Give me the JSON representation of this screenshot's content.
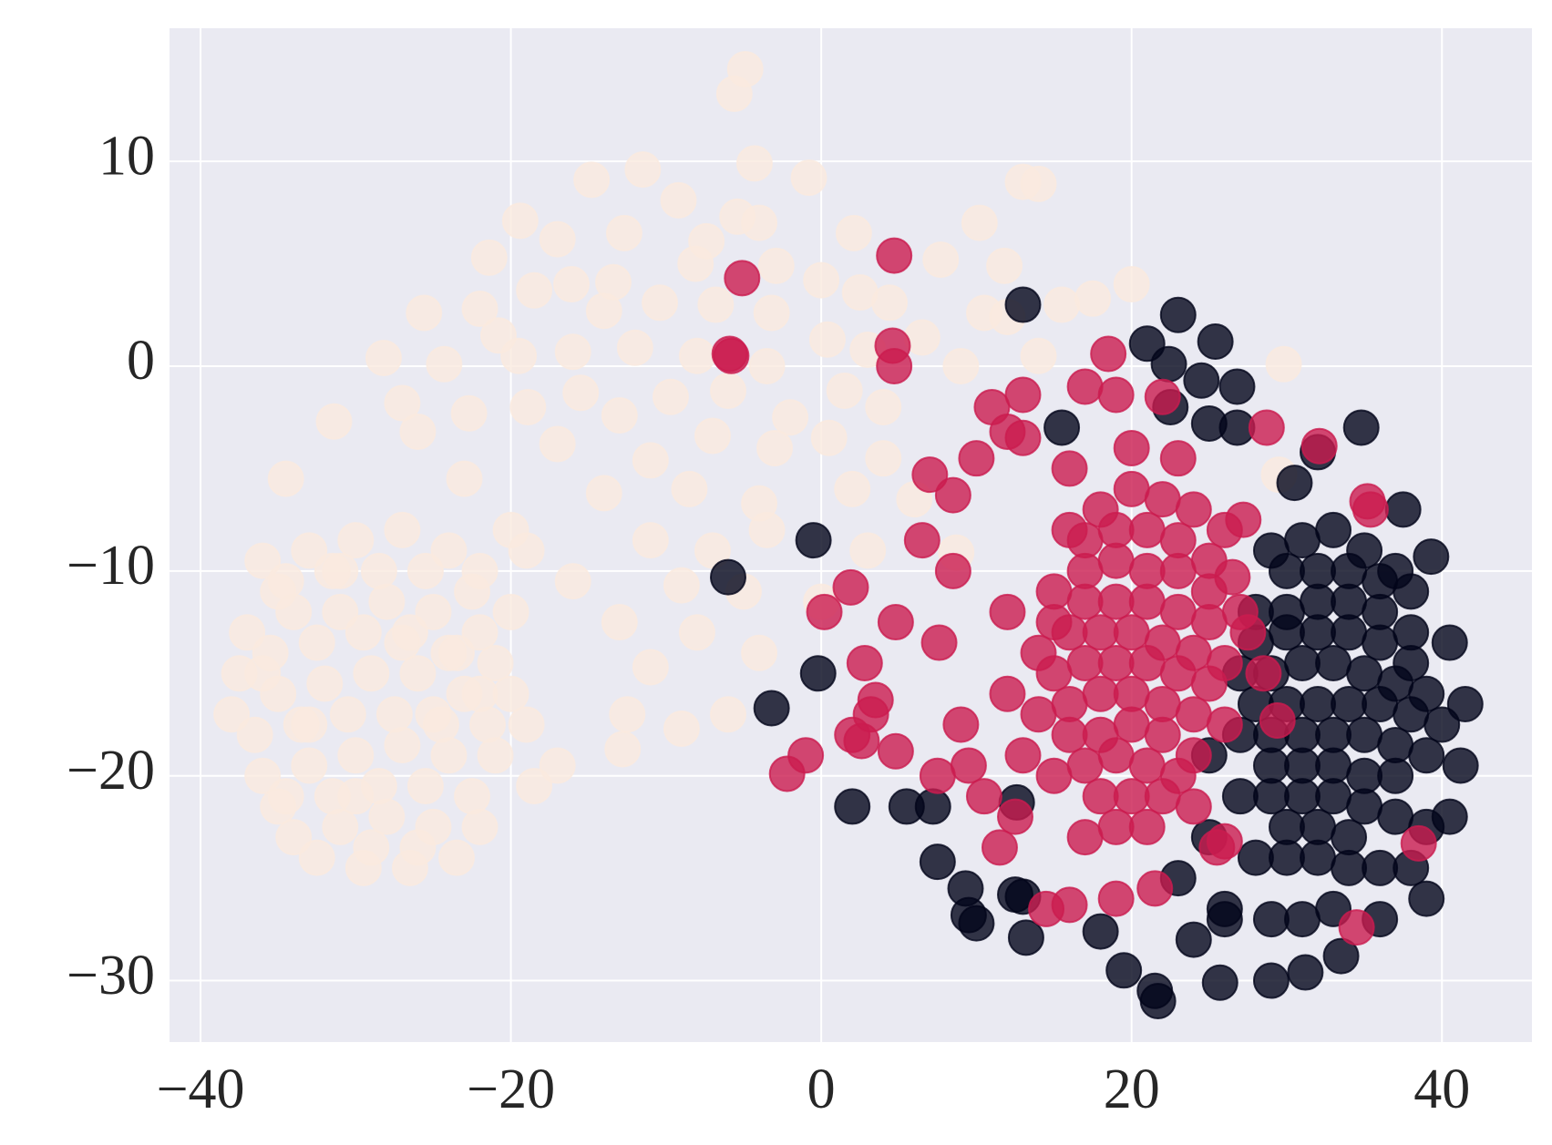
{
  "chart_data": {
    "type": "scatter",
    "xlim": [
      -42,
      45.8
    ],
    "ylim": [
      -33,
      16.5
    ],
    "xticks": [
      {
        "value": -40,
        "label": "−40"
      },
      {
        "value": -20,
        "label": "−20"
      },
      0,
      20,
      40
    ],
    "yticks": [
      {
        "value": -30,
        "label": "−30"
      },
      {
        "value": -20,
        "label": "−20"
      },
      {
        "value": -10,
        "label": "−10"
      },
      0,
      10
    ],
    "grid": true,
    "alpha": 0.8,
    "background": "#eaeaf2",
    "series": [
      {
        "color": "#faeade",
        "x": [
          -5.6,
          -4.9,
          -11.5,
          -14.8,
          -4.3,
          -0.8,
          -9.2,
          -19.4,
          -17,
          -12.7,
          -5.4,
          -4,
          -21.4,
          -7.4,
          -8.1,
          2.1,
          7.7,
          10.2,
          13,
          14,
          11.8,
          -2.9,
          0,
          -13.4,
          -16.1,
          -18.5,
          -25.6,
          -20.8,
          -22,
          -14,
          -10.4,
          -6.8,
          -3.2,
          2.5,
          4.4,
          10.5,
          12,
          15.5,
          17.5,
          20,
          -28.2,
          -24.3,
          -19.5,
          -16,
          -12,
          -8,
          -3.5,
          0.4,
          3,
          6.5,
          9,
          14,
          29.8,
          -27,
          -22.7,
          -18.9,
          -15.5,
          -13,
          -9.7,
          -6,
          -2,
          1.5,
          4,
          -31.4,
          -26,
          -17,
          -11,
          -7,
          -3,
          0.5,
          4,
          -34.5,
          -23,
          -14,
          -8.5,
          -4,
          2,
          6,
          -20,
          -11,
          -7,
          -3.5,
          3,
          -16,
          -9,
          -5,
          0,
          -13,
          -8,
          -4,
          -11,
          -22,
          -19,
          -12.5,
          -6,
          -9,
          -12.8,
          -17,
          -18.5,
          8.7,
          29.5,
          -36,
          -33,
          -30,
          -27,
          -24,
          -22,
          -37,
          -34,
          -31,
          -28,
          -25,
          -22,
          -38,
          -35,
          -32,
          -29,
          -26,
          -23,
          -36,
          -33,
          -30,
          -27,
          -24,
          -21,
          -34,
          -31,
          -28,
          -25,
          -22,
          -29,
          -26,
          -33,
          -27,
          -31,
          -24,
          -37.5,
          -35,
          -20,
          -20,
          -19,
          -34.5,
          -31.5,
          -28.5,
          -25.5,
          -22.5,
          -35.5,
          -32.5,
          -29.5,
          -26.5,
          -23.5,
          -36.5,
          -33.5,
          -30.5,
          -27.5,
          -24.5,
          -21.5,
          -34.5,
          -31.5,
          -28.5,
          -25.5,
          -22.5,
          -32.5,
          -29.5,
          -26.5,
          -23.5,
          -35,
          -30,
          -25,
          -21,
          -36
        ],
        "values": [
          13.3,
          14.5,
          9.6,
          9.1,
          9.9,
          9.2,
          8.1,
          7.1,
          6.2,
          6.5,
          7.3,
          7,
          5.3,
          6.1,
          5,
          6.5,
          5.2,
          7,
          9,
          8.9,
          4.9,
          4.9,
          4.2,
          4.1,
          4,
          3.7,
          2.6,
          1.5,
          2.8,
          2.7,
          3.1,
          3,
          2.6,
          3.6,
          3.1,
          2.6,
          2.4,
          3,
          3.3,
          4,
          0.4,
          0.1,
          0.5,
          0.7,
          0.9,
          0.5,
          0,
          1.3,
          0.8,
          1.4,
          0,
          0.5,
          0.1,
          -1.8,
          -2.3,
          -2,
          -1.3,
          -2.4,
          -1.5,
          -1.2,
          -2.5,
          -1.2,
          -2,
          -2.7,
          -3.2,
          -3.8,
          -4.6,
          -3.4,
          -4,
          -3.5,
          -4.5,
          -5.5,
          -5.5,
          -6.2,
          -6,
          -6.7,
          -6,
          -6.5,
          -8,
          -8.5,
          -9,
          -8,
          -9,
          -10.5,
          -10.7,
          -11,
          -11.5,
          -12.5,
          -13,
          -14,
          -14.7,
          -16,
          -17.5,
          -17,
          -17,
          -17.7,
          -18.7,
          -19.5,
          -20.5,
          -9.1,
          -5.3,
          -9.5,
          -9,
          -8.5,
          -8,
          -9,
          -10,
          -13,
          -12,
          -12,
          -11.5,
          -12,
          -13,
          -17,
          -16,
          -15.5,
          -15,
          -15,
          -16,
          -20,
          -19.5,
          -19,
          -18.5,
          -19,
          -19,
          -23,
          -22.5,
          -22,
          -22.5,
          -22.5,
          -23.5,
          -23.5,
          -17.5,
          -13.5,
          -10,
          -14,
          -15,
          -21.5,
          -12,
          -16,
          -9,
          -10.5,
          -10,
          -10,
          -10,
          -11,
          -14,
          -13.5,
          -13,
          -13,
          -14,
          -18,
          -17.5,
          -17,
          -17,
          -17.5,
          -17.5,
          -21,
          -21,
          -20.5,
          -20.5,
          -21,
          -24,
          -24.5,
          -24.5,
          -24,
          -11,
          -21,
          -17,
          -14.5,
          -15
        ]
      },
      {
        "color": "#03051a",
        "x": [
          13,
          23,
          21,
          25.4,
          22.4,
          24.5,
          26.8,
          22.5,
          25,
          26.8,
          15.5,
          32,
          34.8,
          -0.5,
          -6,
          -0.2,
          -3.2,
          2,
          5.5,
          7.2,
          7.5,
          9.3,
          9.5,
          10,
          12.5,
          13,
          13.2,
          18,
          19.5,
          21.5,
          21.7,
          25.7,
          29,
          31.2,
          33.5,
          36,
          39,
          40.5,
          41.2,
          41.5,
          40.5,
          39.3,
          37.5,
          30.5,
          12.6,
          23,
          26,
          29,
          31,
          33,
          35,
          37,
          28,
          30,
          32,
          34,
          36,
          38,
          27,
          29,
          31,
          33,
          35,
          37,
          39,
          27,
          29,
          31,
          33,
          35,
          37,
          39,
          27,
          29,
          31,
          33,
          35,
          37,
          39,
          28,
          30,
          32,
          34,
          36,
          38,
          29,
          31,
          33,
          25,
          25,
          26,
          24,
          30,
          32,
          34,
          36,
          38,
          28,
          30,
          32,
          34,
          36,
          38,
          28,
          30,
          32,
          34,
          36,
          38,
          40,
          29,
          31,
          33,
          35,
          37,
          30,
          32,
          34
        ],
        "values": [
          3,
          2.5,
          1.1,
          1.2,
          0.1,
          -0.7,
          -1,
          -2,
          -2.8,
          -3,
          -3,
          -4.2,
          -3,
          -8.5,
          -10.3,
          -15,
          -16.7,
          -21.5,
          -21.5,
          -21.5,
          -24.2,
          -25.5,
          -26.8,
          -27.2,
          -25.8,
          -25.9,
          -27.9,
          -27.6,
          -29.5,
          -30.5,
          -31,
          -30.1,
          -30,
          -29.6,
          -28.8,
          -27,
          -26,
          -22,
          -19.5,
          -16.5,
          -13.5,
          -9.3,
          -7,
          -5.7,
          -21.3,
          -25,
          -26.5,
          -9,
          -8.5,
          -8,
          -9,
          -10,
          -12,
          -12,
          -11.5,
          -11.5,
          -12,
          -13,
          -15,
          -15,
          -14.5,
          -14.5,
          -15,
          -15.5,
          -16,
          -18,
          -18,
          -18,
          -18,
          -18,
          -18.5,
          -19,
          -21,
          -21,
          -21,
          -21,
          -21.5,
          -22,
          -22.5,
          -24,
          -24,
          -24,
          -24.5,
          -24.5,
          -24.5,
          -27,
          -27,
          -26.5,
          -19,
          -23,
          -27,
          -28,
          -10,
          -10,
          -10,
          -10.5,
          -11,
          -13.5,
          -13,
          -13,
          -13,
          -13.5,
          -14.5,
          -16.5,
          -16.5,
          -16.5,
          -16.5,
          -16.5,
          -17,
          -17.5,
          -19.5,
          -19.5,
          -19.5,
          -20,
          -20,
          -22.5,
          -22.5,
          -23
        ]
      },
      {
        "color": "#cb1b4f",
        "x": [
          -5.1,
          4.7,
          -5.8,
          -5.9,
          4.6,
          4.7,
          28.7,
          32.1,
          35.2,
          35.4,
          38.5,
          34.5,
          29.4,
          -1,
          -2.2,
          2,
          2.6,
          3.5,
          3.2,
          4.8,
          2.8,
          1.9,
          0.2,
          4.8,
          7.6,
          8.5,
          6.5,
          8.5,
          7,
          10,
          12,
          13,
          17,
          19,
          18.5,
          22,
          11,
          13,
          16,
          11.5,
          14.5,
          16,
          19,
          21.5,
          25.5,
          26,
          24,
          28.5,
          27.5,
          26.5,
          27.2,
          9,
          9.5,
          10.5,
          12.5,
          7.5,
          16,
          18,
          20,
          22,
          24,
          26,
          15,
          17,
          19,
          21,
          23,
          25,
          27,
          14,
          16,
          18,
          20,
          22,
          24,
          26,
          14,
          16,
          18,
          20,
          22,
          24,
          26,
          15,
          17,
          19,
          21,
          23,
          17,
          19,
          21,
          12,
          12,
          13,
          20,
          23,
          17,
          19,
          21,
          23,
          25,
          15,
          17,
          19,
          21,
          23,
          25,
          15,
          17,
          19,
          21,
          23,
          25,
          16,
          18,
          20,
          22,
          24,
          18,
          20,
          22
        ],
        "values": [
          4.3,
          5.4,
          0.5,
          0.6,
          1,
          0,
          -3,
          -3.9,
          -6.6,
          -7,
          -23.3,
          -27.4,
          -17.3,
          -19,
          -19.9,
          -18,
          -18.3,
          -16.3,
          -17,
          -18.8,
          -14.5,
          -10.8,
          -12,
          -12.5,
          -13.5,
          -10,
          -8.5,
          -6.3,
          -5.3,
          -4.5,
          -3.2,
          -1.4,
          -1,
          -1.4,
          0.6,
          -1.5,
          -2,
          -3.5,
          -5,
          -23.5,
          -26.5,
          -26.3,
          -26,
          -25.5,
          -23.5,
          -23.2,
          -21.5,
          -15,
          -13,
          -10.3,
          -7.5,
          -17.5,
          -19.5,
          -21,
          -22,
          -20,
          -8,
          -7,
          -6,
          -6.5,
          -7,
          -8,
          -11,
          -10,
          -9.5,
          -10,
          -10,
          -11,
          -12,
          -14,
          -13,
          -13,
          -13,
          -13.5,
          -14,
          -14.5,
          -17,
          -16.5,
          -16,
          -16,
          -16.5,
          -17,
          -17.5,
          -20,
          -19.5,
          -19,
          -19.5,
          -20,
          -23,
          -22.5,
          -22.5,
          -12,
          -16,
          -19,
          -4,
          -4.5,
          -8.5,
          -8,
          -8,
          -8.5,
          -9.5,
          -12.5,
          -11.5,
          -11.5,
          -11.5,
          -12,
          -12.5,
          -15,
          -14.5,
          -14.5,
          -14.5,
          -15,
          -15.5,
          -18,
          -18,
          -17.5,
          -18,
          -19,
          -21,
          -21,
          -21
        ]
      }
    ]
  }
}
